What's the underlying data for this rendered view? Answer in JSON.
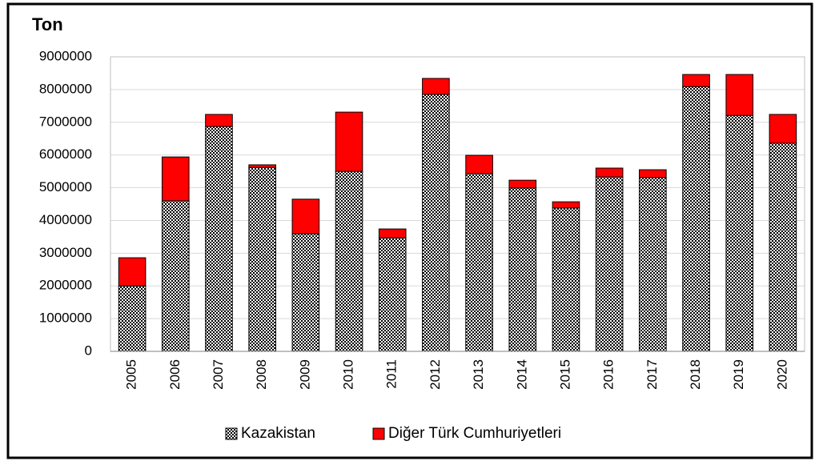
{
  "chart_data": {
    "type": "stacked_bar",
    "title": "Ton",
    "categories": [
      "2005",
      "2006",
      "2007",
      "2008",
      "2009",
      "2010",
      "2011",
      "2012",
      "2013",
      "2014",
      "2015",
      "2016",
      "2017",
      "2018",
      "2019",
      "2020"
    ],
    "series": [
      {
        "name": "Kazakistan",
        "color": "#000000",
        "pattern": "checker",
        "values": [
          2000000,
          4600000,
          6870000,
          5620000,
          3590000,
          5500000,
          3470000,
          7850000,
          5430000,
          4990000,
          4380000,
          5330000,
          5310000,
          8090000,
          7210000,
          6360000
        ]
      },
      {
        "name": "Diğer Türk Cumhuriyetleri",
        "color": "#ff0000",
        "values": [
          860000,
          1340000,
          370000,
          80000,
          1060000,
          1810000,
          270000,
          490000,
          560000,
          240000,
          190000,
          270000,
          240000,
          370000,
          1250000,
          880000
        ]
      }
    ],
    "ylim": [
      0,
      9000000
    ],
    "yticks": [
      0,
      1000000,
      2000000,
      3000000,
      4000000,
      5000000,
      6000000,
      7000000,
      8000000,
      9000000
    ],
    "grid": true,
    "legend": "bottom"
  }
}
